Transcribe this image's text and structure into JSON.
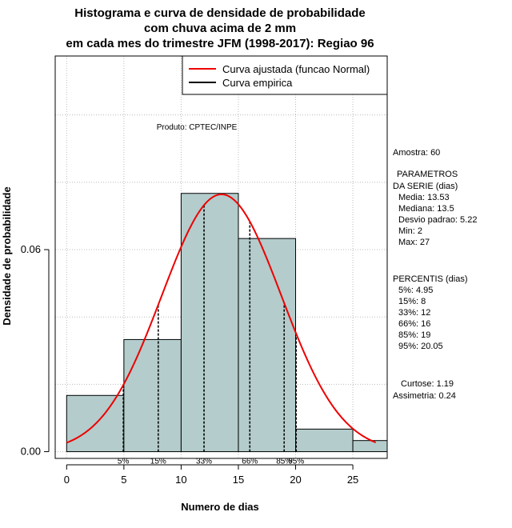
{
  "chart_data": {
    "type": "histogram",
    "title_lines": [
      "Histograma e curva de densidade de probabilidade",
      "com chuva acima de 2 mm",
      "em cada mes do trimestre JFM (1998-2017): Regiao 96"
    ],
    "xlabel": "Numero de dias",
    "ylabel": "Densidade de probabilidade",
    "xlim": [
      -1,
      28
    ],
    "ylim": [
      -0.002,
      0.1175
    ],
    "x_ticks": [
      0,
      5,
      10,
      15,
      20,
      25
    ],
    "y_ticks": [
      0.0,
      0.06
    ],
    "y_tick_labels": [
      "0.00",
      "0.06"
    ],
    "bins": [
      {
        "from": 0,
        "to": 5,
        "density": 0.0167
      },
      {
        "from": 5,
        "to": 10,
        "density": 0.0333
      },
      {
        "from": 10,
        "to": 15,
        "density": 0.0767
      },
      {
        "from": 15,
        "to": 20,
        "density": 0.0633
      },
      {
        "from": 20,
        "to": 25,
        "density": 0.0067
      },
      {
        "from": 25,
        "to": 28,
        "density": 0.0033
      }
    ],
    "normal_fit": {
      "mean": 13.53,
      "sd": 5.22,
      "x_from": 0,
      "x_to": 27
    },
    "percentile_lines": [
      {
        "label": "5%",
        "x": 4.95
      },
      {
        "label": "15%",
        "x": 8
      },
      {
        "label": "33%",
        "x": 12
      },
      {
        "label": "66%",
        "x": 16
      },
      {
        "label": "85%",
        "x": 19
      },
      {
        "label": "95%",
        "x": 20.05
      }
    ],
    "legend": [
      {
        "label": "Curva ajustada (funcao Normal)",
        "color": "#ee0000"
      },
      {
        "label": "Curva empirica",
        "color": "#000000"
      }
    ],
    "credit": "Produto: CPTEC/INPE",
    "colors": {
      "bar_fill": "#b4cccc",
      "curve": "#ee0000",
      "grid": "#bbbbbb"
    }
  },
  "side_panel": {
    "sample": "Amostra: 60",
    "params_header": "PARAMETROS",
    "params_sub": "DA SERIE (dias)",
    "params": [
      "Media: 13.53",
      "Mediana: 13.5",
      "Desvio padrao: 5.22",
      "Min: 2",
      "Max: 27"
    ],
    "percentis_header": "PERCENTIS (dias)",
    "percentis": [
      "5%: 4.95",
      "15%: 8",
      "33%: 12",
      "66%: 16",
      "85%: 19",
      "95%: 20.05"
    ],
    "curtose": "Curtose: 1.19",
    "assimetria": "Assimetria: 0.24"
  }
}
